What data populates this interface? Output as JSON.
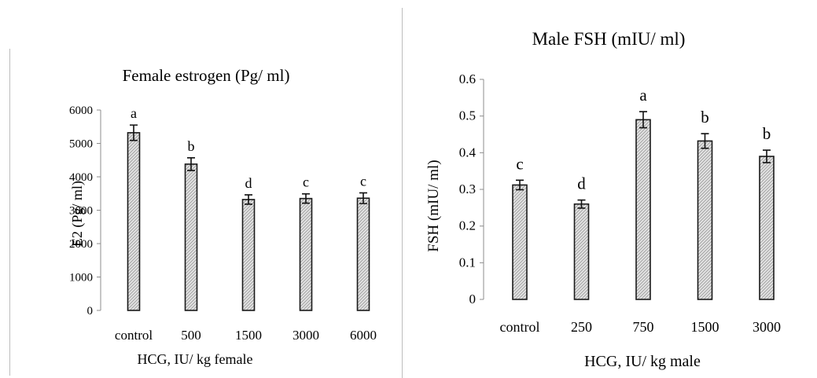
{
  "chart_data": [
    {
      "type": "bar",
      "title": "Female estrogen (Pg/ ml)",
      "xlabel": "HCG,  IU/  kg  female",
      "ylabel": "E2 (Pg/ ml)",
      "categories": [
        "control",
        "500",
        "1500",
        "3000",
        "6000"
      ],
      "values": [
        5320,
        4380,
        3320,
        3350,
        3360
      ],
      "errors": [
        230,
        190,
        140,
        140,
        160
      ],
      "letters": [
        "a",
        "b",
        "d",
        "c",
        "c"
      ],
      "ylim": [
        0,
        6000
      ],
      "yticks": [
        0,
        1000,
        2000,
        3000,
        4000,
        5000,
        6000
      ],
      "ytick_labels": [
        "0",
        "1000",
        "2000",
        "3000",
        "4000",
        "5000",
        "6000"
      ],
      "grid": false,
      "bar_pattern": "hatched"
    },
    {
      "type": "bar",
      "title": "Male FSH (mIU/ ml)",
      "xlabel": "HCG, IU/ kg  male",
      "ylabel": "FSH (mIU/ ml)",
      "categories": [
        "control",
        "250",
        "750",
        "1500",
        "3000"
      ],
      "values": [
        0.312,
        0.26,
        0.49,
        0.432,
        0.39
      ],
      "errors": [
        0.013,
        0.011,
        0.022,
        0.02,
        0.017
      ],
      "letters": [
        "c",
        "d",
        "a",
        "b",
        "b"
      ],
      "ylim": [
        0,
        0.6
      ],
      "yticks": [
        0,
        0.1,
        0.2,
        0.3,
        0.4,
        0.5,
        0.6
      ],
      "ytick_labels": [
        "0",
        "0.1",
        "0.2",
        "0.3",
        "0.4",
        "0.5",
        "0.6"
      ],
      "grid": false,
      "bar_pattern": "hatched"
    }
  ]
}
